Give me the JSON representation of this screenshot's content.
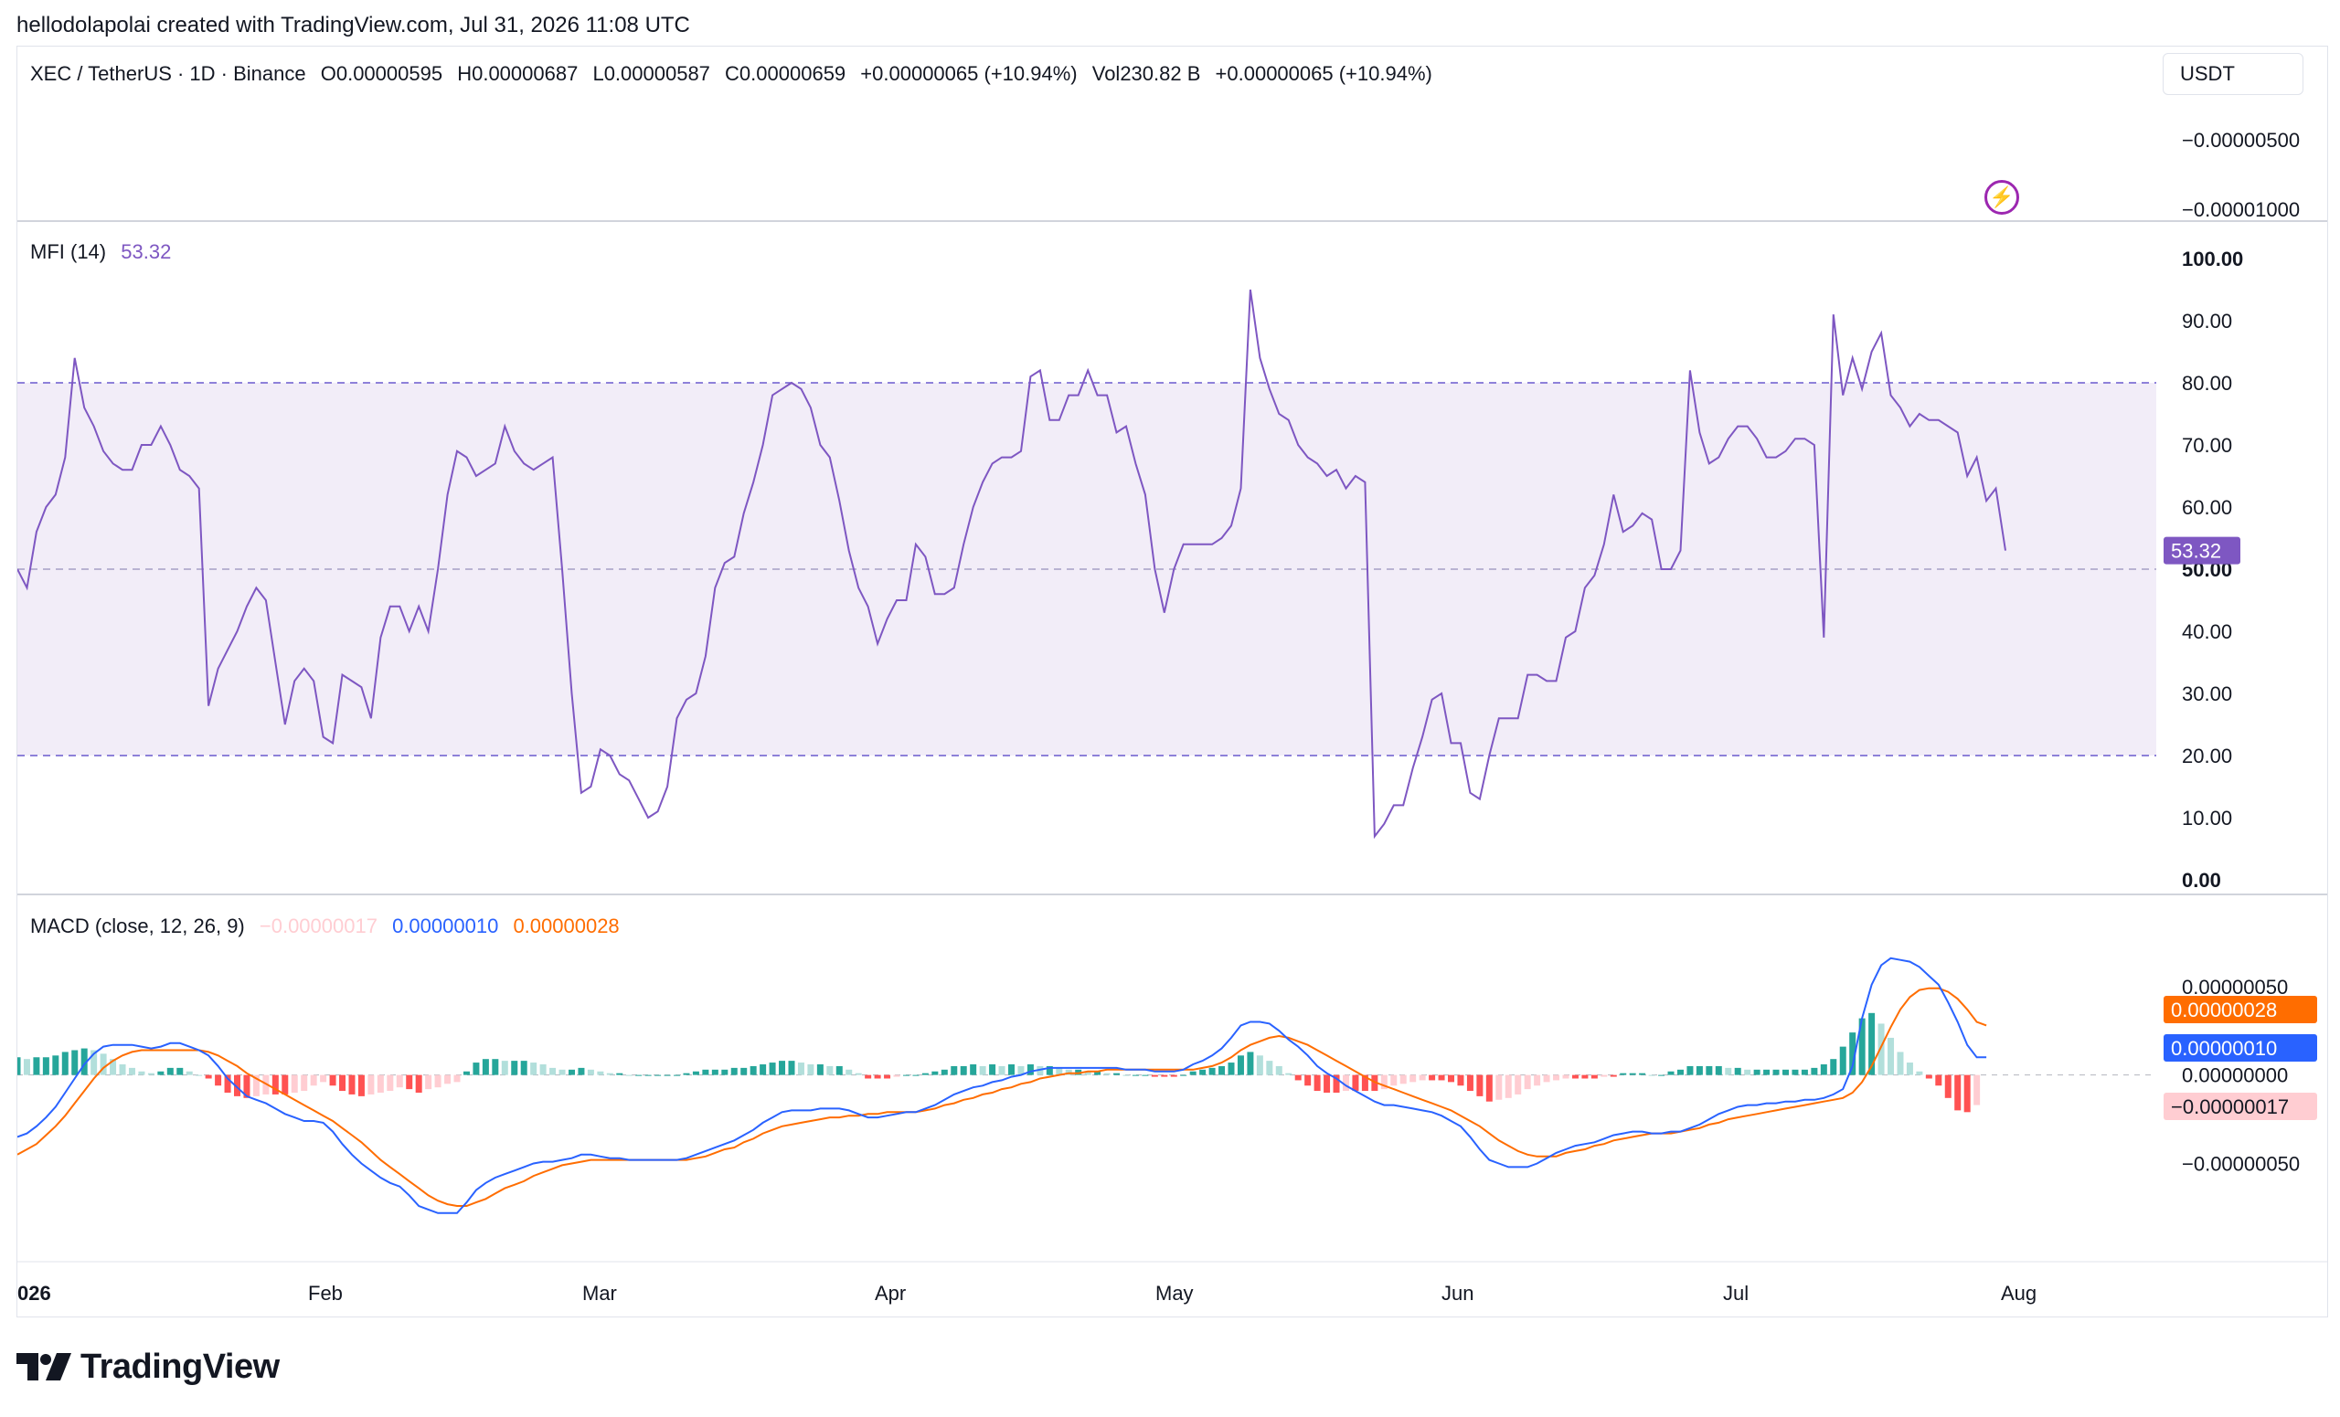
{
  "header": "hellodolapolai created with TradingView.com, Jul 31, 2026 11:08 UTC",
  "symbol": {
    "pair": "XEC / TetherUS · 1D · Binance",
    "open": "O0.00000595",
    "high": "H0.00000687",
    "low": "L0.00000587",
    "close": "C0.00000659",
    "change": "+0.00000065 (+10.94%)",
    "volume": "Vol230.82 B",
    "volume_change": "+0.00000065 (+10.94%)"
  },
  "currency_button": "USDT",
  "price_scale": [
    "−0.00000500",
    "−0.00001000"
  ],
  "brand": "TradingView",
  "colors": {
    "mfi": "#7e57c2",
    "mfi_band": "#7e57c2",
    "macd": "#2962ff",
    "signal": "#ff6d00",
    "hist_pos_strong": "#26a69a",
    "hist_pos_weak": "#b2dfdb",
    "hist_neg_strong": "#ff5252",
    "hist_neg_weak": "#ffcdd2"
  },
  "chart_data": [
    {
      "type": "line",
      "title": "MFI (14)",
      "last_value": "53.32",
      "ylim": [
        0,
        100
      ],
      "yticks": [
        "100.00",
        "90.00",
        "80.00",
        "70.00",
        "60.00",
        "50.00",
        "40.00",
        "30.00",
        "20.00",
        "10.00",
        "0.00"
      ],
      "bands": [
        80,
        50,
        20
      ],
      "x_labels": [
        "026",
        "Feb",
        "Mar",
        "Apr",
        "May",
        "Jun",
        "Jul",
        "Aug"
      ],
      "series": [
        {
          "values": [
            50,
            47,
            56,
            60,
            62,
            68,
            84,
            76,
            73,
            69,
            67,
            66,
            66,
            70,
            70,
            73,
            70,
            66,
            65,
            63,
            28,
            34,
            37,
            40,
            44,
            47,
            45,
            35,
            25,
            32,
            34,
            32,
            23,
            22,
            33,
            32,
            31,
            26,
            39,
            44,
            44,
            40,
            44,
            40,
            50,
            62,
            69,
            68,
            65,
            66,
            67,
            73,
            69,
            67,
            66,
            67,
            68,
            50,
            30,
            14,
            15,
            21,
            20,
            17,
            16,
            13,
            10,
            11,
            15,
            26,
            29,
            30,
            36,
            47,
            51,
            52,
            59,
            64,
            70,
            78,
            79,
            80,
            79,
            76,
            70,
            68,
            61,
            53,
            47,
            44,
            38,
            42,
            45,
            45,
            54,
            52,
            46,
            46,
            47,
            54,
            60,
            64,
            67,
            68,
            68,
            69,
            81,
            82,
            74,
            74,
            78,
            78,
            82,
            78,
            78,
            72,
            73,
            67,
            62,
            50,
            43,
            50,
            54,
            54,
            54,
            54,
            55,
            57,
            63,
            95,
            84,
            79,
            75,
            74,
            70,
            68,
            67,
            65,
            66,
            63,
            65,
            64,
            7,
            9,
            12,
            12,
            18,
            23,
            29,
            30,
            22,
            22,
            14,
            13,
            20,
            26,
            26,
            26,
            33,
            33,
            32,
            32,
            39,
            40,
            47,
            49,
            54,
            62,
            56,
            57,
            59,
            58,
            50,
            50,
            53,
            82,
            72,
            67,
            68,
            71,
            73,
            73,
            71,
            68,
            68,
            69,
            71,
            71,
            70,
            39,
            91,
            78,
            84,
            79,
            85,
            88,
            78,
            76,
            73,
            75,
            74,
            74,
            73,
            72,
            65,
            68,
            61,
            63,
            53
          ]
        }
      ]
    },
    {
      "type": "line",
      "title": "MACD (close, 12, 26, 9)",
      "legend_values": {
        "histogram": "−0.00000017",
        "macd": "0.00000010",
        "signal": "0.00000028"
      },
      "ylim": [
        -9e-07,
        7e-07
      ],
      "yticks": [
        "0.00000050",
        "0.00000000",
        "−0.00000050"
      ],
      "labels": {
        "signal": "0.00000028",
        "macd": "0.00000010",
        "histogram": "−0.00000017"
      },
      "x_labels": [
        "026",
        "Feb",
        "Mar",
        "Apr",
        "May",
        "Jun",
        "Jul",
        "Aug"
      ],
      "series": [
        {
          "name": "MACD",
          "values": [
            -0.35,
            -0.33,
            -0.29,
            -0.24,
            -0.18,
            -0.1,
            -0.02,
            0.06,
            0.12,
            0.16,
            0.17,
            0.17,
            0.17,
            0.16,
            0.15,
            0.16,
            0.18,
            0.18,
            0.16,
            0.14,
            0.11,
            0.05,
            -0.02,
            -0.07,
            -0.12,
            -0.14,
            -0.16,
            -0.19,
            -0.22,
            -0.24,
            -0.26,
            -0.26,
            -0.27,
            -0.32,
            -0.39,
            -0.45,
            -0.5,
            -0.54,
            -0.58,
            -0.61,
            -0.63,
            -0.68,
            -0.74,
            -0.76,
            -0.78,
            -0.78,
            -0.78,
            -0.72,
            -0.65,
            -0.61,
            -0.58,
            -0.56,
            -0.54,
            -0.52,
            -0.5,
            -0.49,
            -0.49,
            -0.48,
            -0.47,
            -0.45,
            -0.45,
            -0.46,
            -0.47,
            -0.47,
            -0.48,
            -0.48,
            -0.48,
            -0.48,
            -0.48,
            -0.48,
            -0.47,
            -0.45,
            -0.43,
            -0.41,
            -0.39,
            -0.37,
            -0.34,
            -0.31,
            -0.27,
            -0.24,
            -0.21,
            -0.2,
            -0.2,
            -0.2,
            -0.19,
            -0.19,
            -0.19,
            -0.2,
            -0.22,
            -0.24,
            -0.24,
            -0.23,
            -0.22,
            -0.21,
            -0.21,
            -0.19,
            -0.17,
            -0.14,
            -0.11,
            -0.09,
            -0.07,
            -0.06,
            -0.04,
            -0.03,
            -0.01,
            0.0,
            0.02,
            0.03,
            0.04,
            0.04,
            0.04,
            0.04,
            0.04,
            0.04,
            0.04,
            0.04,
            0.03,
            0.03,
            0.03,
            0.02,
            0.02,
            0.02,
            0.03,
            0.06,
            0.08,
            0.11,
            0.15,
            0.21,
            0.28,
            0.3,
            0.3,
            0.29,
            0.25,
            0.2,
            0.16,
            0.11,
            0.05,
            0.01,
            -0.02,
            -0.06,
            -0.09,
            -0.12,
            -0.15,
            -0.17,
            -0.17,
            -0.18,
            -0.19,
            -0.2,
            -0.21,
            -0.23,
            -0.26,
            -0.29,
            -0.35,
            -0.42,
            -0.48,
            -0.5,
            -0.52,
            -0.52,
            -0.52,
            -0.5,
            -0.47,
            -0.44,
            -0.42,
            -0.4,
            -0.39,
            -0.38,
            -0.36,
            -0.34,
            -0.33,
            -0.32,
            -0.32,
            -0.33,
            -0.33,
            -0.32,
            -0.32,
            -0.3,
            -0.28,
            -0.25,
            -0.22,
            -0.2,
            -0.18,
            -0.17,
            -0.17,
            -0.16,
            -0.16,
            -0.15,
            -0.15,
            -0.14,
            -0.14,
            -0.13,
            -0.11,
            -0.08,
            0.05,
            0.32,
            0.51,
            0.62,
            0.66,
            0.65,
            0.64,
            0.61,
            0.56,
            0.51,
            0.41,
            0.3,
            0.17,
            0.1,
            0.1
          ]
        },
        {
          "name": "Signal",
          "values": [
            -0.45,
            -0.42,
            -0.39,
            -0.34,
            -0.29,
            -0.23,
            -0.16,
            -0.09,
            -0.02,
            0.04,
            0.08,
            0.11,
            0.13,
            0.14,
            0.14,
            0.14,
            0.14,
            0.14,
            0.14,
            0.14,
            0.13,
            0.11,
            0.08,
            0.05,
            0.01,
            -0.02,
            -0.05,
            -0.08,
            -0.11,
            -0.14,
            -0.17,
            -0.2,
            -0.23,
            -0.26,
            -0.3,
            -0.34,
            -0.38,
            -0.43,
            -0.48,
            -0.52,
            -0.56,
            -0.6,
            -0.64,
            -0.68,
            -0.71,
            -0.73,
            -0.74,
            -0.74,
            -0.72,
            -0.7,
            -0.67,
            -0.64,
            -0.62,
            -0.6,
            -0.57,
            -0.55,
            -0.53,
            -0.51,
            -0.5,
            -0.49,
            -0.48,
            -0.48,
            -0.48,
            -0.48,
            -0.48,
            -0.48,
            -0.48,
            -0.48,
            -0.48,
            -0.48,
            -0.48,
            -0.47,
            -0.46,
            -0.44,
            -0.42,
            -0.41,
            -0.38,
            -0.36,
            -0.33,
            -0.31,
            -0.29,
            -0.28,
            -0.27,
            -0.26,
            -0.25,
            -0.24,
            -0.24,
            -0.23,
            -0.23,
            -0.22,
            -0.22,
            -0.21,
            -0.21,
            -0.21,
            -0.21,
            -0.2,
            -0.19,
            -0.17,
            -0.16,
            -0.14,
            -0.13,
            -0.11,
            -0.1,
            -0.08,
            -0.07,
            -0.05,
            -0.04,
            -0.02,
            -0.01,
            0.0,
            0.01,
            0.01,
            0.02,
            0.02,
            0.03,
            0.03,
            0.03,
            0.03,
            0.03,
            0.03,
            0.03,
            0.03,
            0.03,
            0.03,
            0.04,
            0.05,
            0.07,
            0.1,
            0.14,
            0.17,
            0.19,
            0.21,
            0.22,
            0.21,
            0.19,
            0.17,
            0.14,
            0.11,
            0.08,
            0.05,
            0.02,
            -0.01,
            -0.04,
            -0.06,
            -0.08,
            -0.1,
            -0.12,
            -0.14,
            -0.16,
            -0.18,
            -0.2,
            -0.23,
            -0.26,
            -0.29,
            -0.33,
            -0.37,
            -0.4,
            -0.43,
            -0.45,
            -0.46,
            -0.46,
            -0.46,
            -0.44,
            -0.43,
            -0.42,
            -0.4,
            -0.39,
            -0.37,
            -0.36,
            -0.35,
            -0.34,
            -0.33,
            -0.33,
            -0.33,
            -0.32,
            -0.31,
            -0.3,
            -0.28,
            -0.27,
            -0.25,
            -0.24,
            -0.23,
            -0.22,
            -0.21,
            -0.2,
            -0.19,
            -0.18,
            -0.17,
            -0.16,
            -0.15,
            -0.14,
            -0.13,
            -0.1,
            -0.04,
            0.05,
            0.16,
            0.27,
            0.37,
            0.44,
            0.48,
            0.49,
            0.49,
            0.47,
            0.43,
            0.37,
            0.3,
            0.28
          ]
        },
        {
          "name": "Histogram",
          "values": [
            0.1,
            0.09,
            0.1,
            0.1,
            0.11,
            0.13,
            0.14,
            0.15,
            0.14,
            0.12,
            0.09,
            0.06,
            0.04,
            0.02,
            0.01,
            0.02,
            0.04,
            0.04,
            0.02,
            0.0,
            -0.02,
            -0.06,
            -0.1,
            -0.12,
            -0.13,
            -0.12,
            -0.11,
            -0.11,
            -0.11,
            -0.1,
            -0.09,
            -0.06,
            -0.04,
            -0.06,
            -0.09,
            -0.11,
            -0.12,
            -0.11,
            -0.1,
            -0.09,
            -0.07,
            -0.08,
            -0.1,
            -0.08,
            -0.07,
            -0.05,
            -0.04,
            0.02,
            0.07,
            0.09,
            0.09,
            0.08,
            0.08,
            0.08,
            0.07,
            0.06,
            0.04,
            0.03,
            0.03,
            0.04,
            0.03,
            0.02,
            0.01,
            0.01,
            0.0,
            0.0,
            0.0,
            0.0,
            0.0,
            0.0,
            0.01,
            0.02,
            0.03,
            0.03,
            0.03,
            0.04,
            0.04,
            0.05,
            0.06,
            0.07,
            0.08,
            0.08,
            0.07,
            0.06,
            0.06,
            0.05,
            0.05,
            0.03,
            0.01,
            -0.02,
            -0.02,
            -0.02,
            -0.01,
            0.0,
            0.0,
            0.01,
            0.02,
            0.03,
            0.05,
            0.05,
            0.06,
            0.05,
            0.06,
            0.05,
            0.06,
            0.05,
            0.06,
            0.05,
            0.05,
            0.04,
            0.03,
            0.03,
            0.02,
            0.02,
            0.01,
            0.01,
            0.0,
            0.0,
            0.0,
            -0.01,
            -0.01,
            -0.01,
            0.0,
            0.02,
            0.03,
            0.04,
            0.05,
            0.07,
            0.11,
            0.13,
            0.11,
            0.08,
            0.05,
            0.01,
            -0.03,
            -0.06,
            -0.09,
            -0.1,
            -0.1,
            -0.09,
            -0.09,
            -0.09,
            -0.09,
            -0.08,
            -0.06,
            -0.05,
            -0.04,
            -0.03,
            -0.03,
            -0.03,
            -0.04,
            -0.06,
            -0.09,
            -0.12,
            -0.15,
            -0.14,
            -0.13,
            -0.11,
            -0.08,
            -0.06,
            -0.04,
            -0.03,
            -0.02,
            -0.02,
            -0.02,
            -0.02,
            -0.01,
            -0.01,
            0.01,
            0.01,
            0.01,
            0.0,
            0.0,
            0.02,
            0.03,
            0.05,
            0.05,
            0.05,
            0.05,
            0.04,
            0.04,
            0.03,
            0.03,
            0.03,
            0.03,
            0.03,
            0.03,
            0.03,
            0.04,
            0.06,
            0.09,
            0.16,
            0.24,
            0.32,
            0.35,
            0.29,
            0.21,
            0.13,
            0.07,
            0.02,
            -0.02,
            -0.06,
            -0.13,
            -0.2,
            -0.21,
            -0.17
          ]
        }
      ]
    }
  ]
}
